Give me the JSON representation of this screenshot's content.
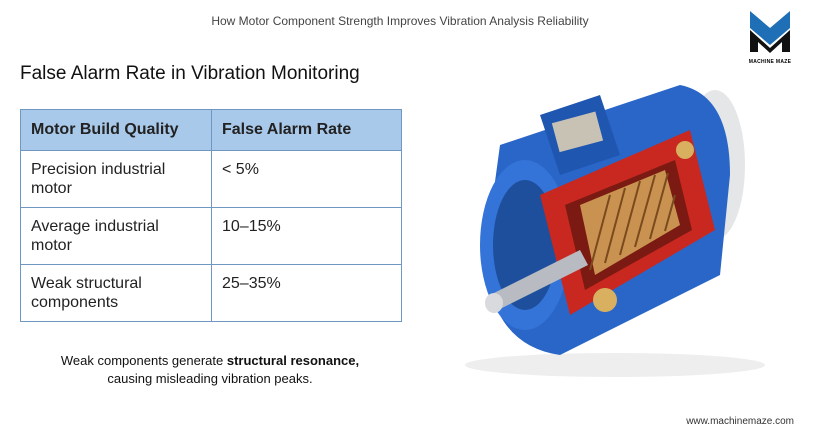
{
  "header": {
    "title": "How Motor Component Strength Improves Vibration Analysis Reliability",
    "logo_text": "MACHINE MAZE"
  },
  "title": "False Alarm Rate in Vibration Monitoring",
  "table": {
    "columns": [
      "Motor Build Quality",
      "False Alarm Rate"
    ],
    "rows": [
      [
        "Precision industrial motor",
        "< 5%"
      ],
      [
        "Average industrial motor",
        "10–15%"
      ],
      [
        "Weak structural components",
        "25–35%"
      ]
    ]
  },
  "caption": {
    "parts": [
      "Weak components generate ",
      "structural resonance,",
      " causing misleading vibration peaks."
    ]
  },
  "footer": {
    "url": "www.machinemaze.com"
  }
}
